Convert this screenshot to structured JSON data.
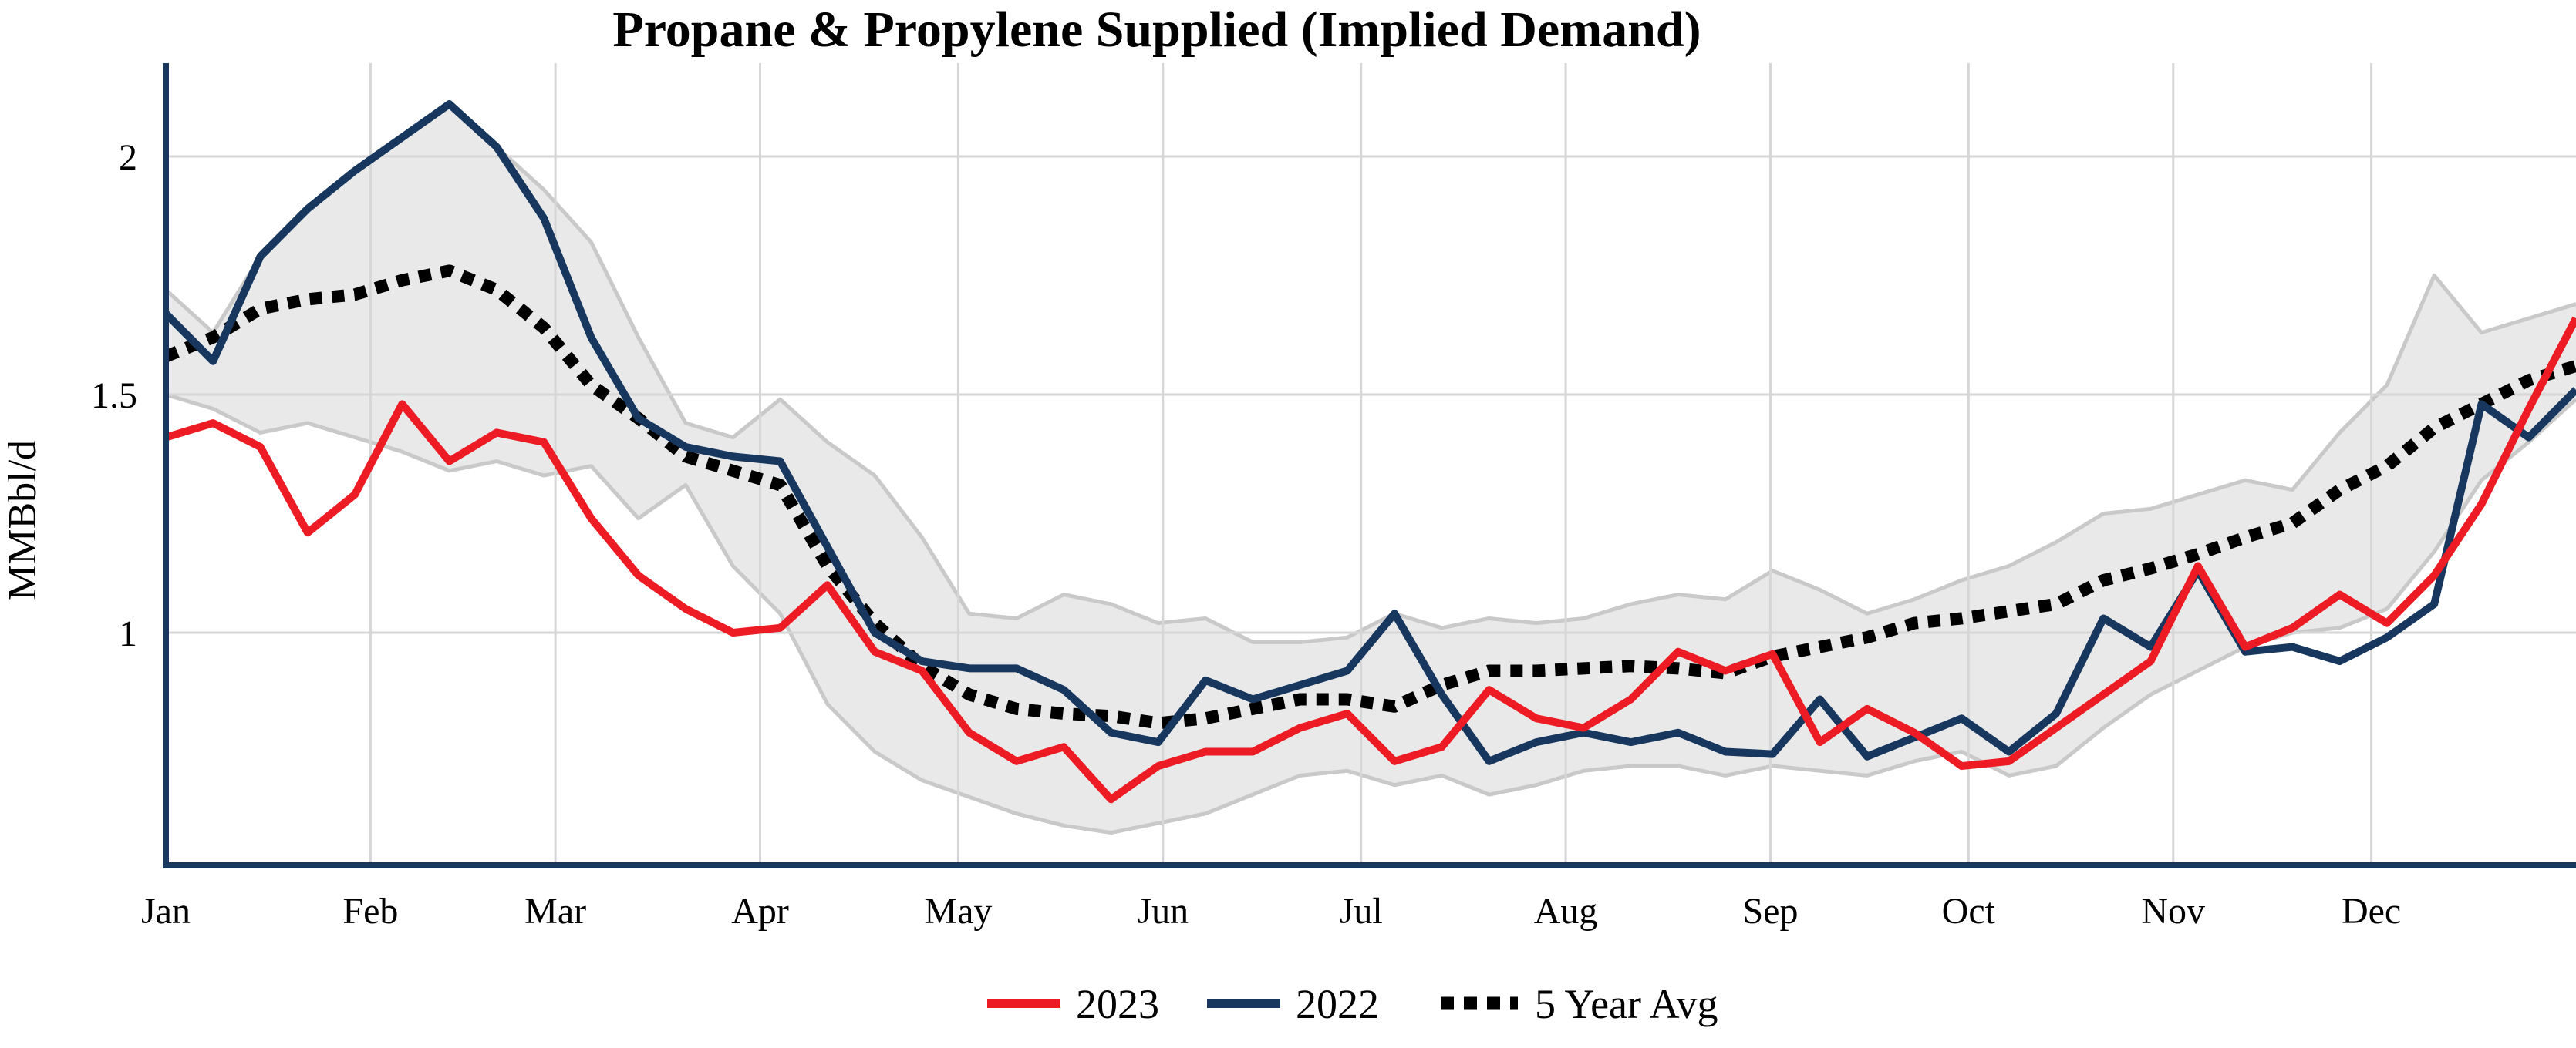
{
  "chart_data": {
    "type": "line",
    "title": "Propane & Propylene Supplied (Implied Demand)",
    "ylabel": "MMBbl/d",
    "xlabel": "",
    "x_unit": "weekly (52 points, Jan-Dec)",
    "ylim": [
      0.42,
      2.2
    ],
    "grid": true,
    "legend_position": "bottom-center",
    "y_ticks": [
      {
        "label": "2",
        "value": 2
      },
      {
        "label": "1.5",
        "value": 1.5
      },
      {
        "label": "1",
        "value": 1
      }
    ],
    "months": [
      {
        "label": "Jan",
        "day": 0
      },
      {
        "label": "Feb",
        "day": 31
      },
      {
        "label": "Mar",
        "day": 59
      },
      {
        "label": "Apr",
        "day": 90
      },
      {
        "label": "May",
        "day": 120
      },
      {
        "label": "Jun",
        "day": 151
      },
      {
        "label": "Jul",
        "day": 181
      },
      {
        "label": "Aug",
        "day": 212
      },
      {
        "label": "Sep",
        "day": 243
      },
      {
        "label": "Oct",
        "day": 273
      },
      {
        "label": "Nov",
        "day": 304
      },
      {
        "label": "Dec",
        "day": 334
      }
    ],
    "band": {
      "name": "5 Year Range",
      "fill": "#E9E9E9",
      "edge": "#C9C9C9",
      "max": [
        1.72,
        1.63,
        1.79,
        1.89,
        1.97,
        2.04,
        2.11,
        2.02,
        1.93,
        1.82,
        1.62,
        1.44,
        1.41,
        1.49,
        1.4,
        1.33,
        1.2,
        1.04,
        1.03,
        1.08,
        1.06,
        1.02,
        1.03,
        0.98,
        0.98,
        0.99,
        1.04,
        1.01,
        1.03,
        1.02,
        1.03,
        1.06,
        1.08,
        1.07,
        1.13,
        1.09,
        1.04,
        1.07,
        1.11,
        1.14,
        1.19,
        1.25,
        1.26,
        1.29,
        1.32,
        1.3,
        1.42,
        1.52,
        1.75,
        1.63,
        1.66,
        1.69
      ],
      "min": [
        1.5,
        1.47,
        1.42,
        1.44,
        1.41,
        1.38,
        1.34,
        1.36,
        1.33,
        1.35,
        1.24,
        1.31,
        1.14,
        1.04,
        0.85,
        0.75,
        0.69,
        0.655,
        0.62,
        0.595,
        0.58,
        0.6,
        0.62,
        0.66,
        0.7,
        0.71,
        0.68,
        0.7,
        0.66,
        0.68,
        0.71,
        0.72,
        0.72,
        0.7,
        0.72,
        0.71,
        0.7,
        0.73,
        0.75,
        0.7,
        0.72,
        0.8,
        0.87,
        0.92,
        0.97,
        1.0,
        1.01,
        1.05,
        1.17,
        1.32,
        1.4,
        1.49
      ]
    },
    "series": [
      {
        "name": "2023",
        "color": "#ED1B24",
        "style": "solid",
        "width": 10,
        "values": [
          1.41,
          1.44,
          1.39,
          1.21,
          1.29,
          1.48,
          1.36,
          1.42,
          1.4,
          1.24,
          1.12,
          1.05,
          1.0,
          1.01,
          1.1,
          0.96,
          0.92,
          0.79,
          0.73,
          0.76,
          0.65,
          0.72,
          0.75,
          0.75,
          0.8,
          0.83,
          0.73,
          0.76,
          0.88,
          0.82,
          0.8,
          0.86,
          0.96,
          0.92,
          0.955,
          0.77,
          0.84,
          0.79,
          0.72,
          0.73,
          0.8,
          0.87,
          0.94,
          1.14,
          0.97,
          1.01,
          1.08,
          1.02,
          1.12,
          1.27,
          1.47,
          1.66
        ]
      },
      {
        "name": "2022",
        "color": "#17375E",
        "style": "solid",
        "width": 10,
        "values": [
          1.67,
          1.57,
          1.79,
          1.89,
          1.97,
          2.04,
          2.11,
          2.02,
          1.87,
          1.62,
          1.45,
          1.39,
          1.37,
          1.36,
          1.18,
          1.0,
          0.94,
          0.925,
          0.925,
          0.88,
          0.79,
          0.77,
          0.9,
          0.86,
          0.89,
          0.92,
          1.04,
          0.87,
          0.73,
          0.77,
          0.79,
          0.77,
          0.79,
          0.75,
          0.745,
          0.86,
          0.74,
          0.78,
          0.82,
          0.75,
          0.83,
          1.03,
          0.97,
          1.13,
          0.96,
          0.97,
          0.94,
          0.99,
          1.06,
          1.48,
          1.41,
          1.51
        ]
      },
      {
        "name": "5 Year Avg",
        "color": "#000000",
        "style": "dotted",
        "width": 16,
        "values": [
          1.58,
          1.62,
          1.68,
          1.7,
          1.71,
          1.74,
          1.76,
          1.72,
          1.64,
          1.52,
          1.45,
          1.37,
          1.34,
          1.31,
          1.14,
          1.02,
          0.93,
          0.87,
          0.84,
          0.83,
          0.825,
          0.81,
          0.82,
          0.84,
          0.86,
          0.86,
          0.845,
          0.89,
          0.92,
          0.92,
          0.925,
          0.93,
          0.925,
          0.915,
          0.95,
          0.97,
          0.99,
          1.02,
          1.03,
          1.045,
          1.06,
          1.11,
          1.135,
          1.165,
          1.2,
          1.23,
          1.3,
          1.35,
          1.43,
          1.48,
          1.53,
          1.56
        ]
      }
    ],
    "legend": [
      "2023",
      "2022",
      "5 Year Avg"
    ]
  },
  "layout_colors": {
    "axis": "#17375E",
    "gridline": "#D6D6D6",
    "band_fill": "#E9E9E9",
    "band_edge": "#C9C9C9",
    "text": "#000000"
  }
}
